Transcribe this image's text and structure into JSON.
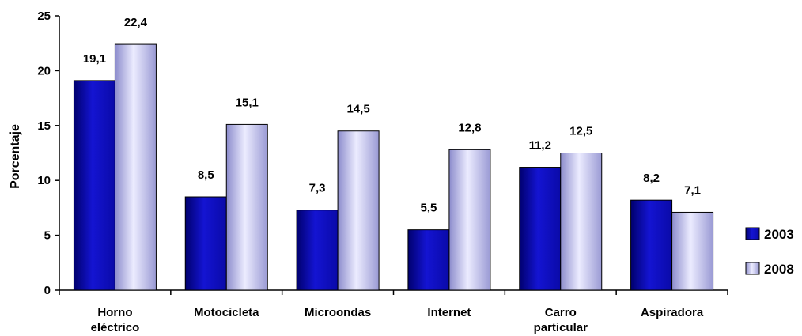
{
  "chart_data": {
    "type": "bar",
    "categories": [
      [
        "Horno",
        "eléctrico"
      ],
      [
        "Motocicleta"
      ],
      [
        "Microondas"
      ],
      [
        "Internet"
      ],
      [
        "Carro",
        "particular"
      ],
      [
        "Aspiradora"
      ]
    ],
    "series": [
      {
        "name": "2003",
        "values": [
          19.1,
          8.5,
          7.3,
          5.5,
          11.2,
          8.2
        ],
        "labels": [
          "19,1",
          "8,5",
          "7,3",
          "5,5",
          "11,2",
          "8,2"
        ]
      },
      {
        "name": "2008",
        "values": [
          22.4,
          15.1,
          14.5,
          12.8,
          12.5,
          7.1
        ],
        "labels": [
          "22,4",
          "15,1",
          "14,5",
          "12,8",
          "12,5",
          "7,1"
        ]
      }
    ],
    "ylabel": "Porcentaje",
    "ylim": [
      0,
      25
    ],
    "yticks": [
      0,
      5,
      10,
      15,
      20,
      25
    ],
    "grid": false,
    "legend_position": "right",
    "colors": {
      "2003": "#1a1ad8",
      "2008": "#c0c0ee"
    }
  }
}
